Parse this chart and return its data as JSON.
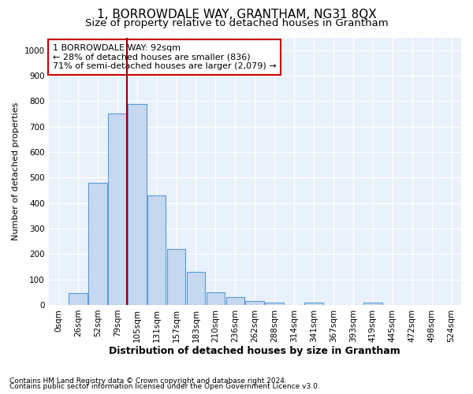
{
  "title": "1, BORROWDALE WAY, GRANTHAM, NG31 8QX",
  "subtitle": "Size of property relative to detached houses in Grantham",
  "xlabel": "Distribution of detached houses by size in Grantham",
  "ylabel": "Number of detached properties",
  "bins": [
    "0sqm",
    "26sqm",
    "52sqm",
    "79sqm",
    "105sqm",
    "131sqm",
    "157sqm",
    "183sqm",
    "210sqm",
    "236sqm",
    "262sqm",
    "288sqm",
    "314sqm",
    "341sqm",
    "367sqm",
    "393sqm",
    "419sqm",
    "445sqm",
    "472sqm",
    "498sqm",
    "524sqm"
  ],
  "values": [
    0,
    45,
    480,
    750,
    790,
    430,
    220,
    130,
    50,
    30,
    15,
    10,
    0,
    8,
    0,
    0,
    10,
    0,
    0,
    0,
    0
  ],
  "bar_color": "#c5d8f0",
  "bar_edge_color": "#5b9bd5",
  "ylim": [
    0,
    1050
  ],
  "yticks": [
    0,
    100,
    200,
    300,
    400,
    500,
    600,
    700,
    800,
    900,
    1000
  ],
  "vline_x": 3.5,
  "vline_color": "#8b0000",
  "annotation_text": "1 BORROWDALE WAY: 92sqm\n← 28% of detached houses are smaller (836)\n71% of semi-detached houses are larger (2,079) →",
  "annotation_box_color": "#ffffff",
  "annotation_box_edge": "#cc0000",
  "footnote1": "Contains HM Land Registry data © Crown copyright and database right 2024.",
  "footnote2": "Contains public sector information licensed under the Open Government Licence v3.0.",
  "bg_color": "#e8f0fa",
  "fig_bg_color": "#ffffff",
  "grid_color": "#ffffff",
  "title_fontsize": 11,
  "subtitle_fontsize": 9.5,
  "axis_label_fontsize": 9,
  "tick_fontsize": 7.5,
  "ylabel_fontsize": 8,
  "footnote_fontsize": 6.5
}
